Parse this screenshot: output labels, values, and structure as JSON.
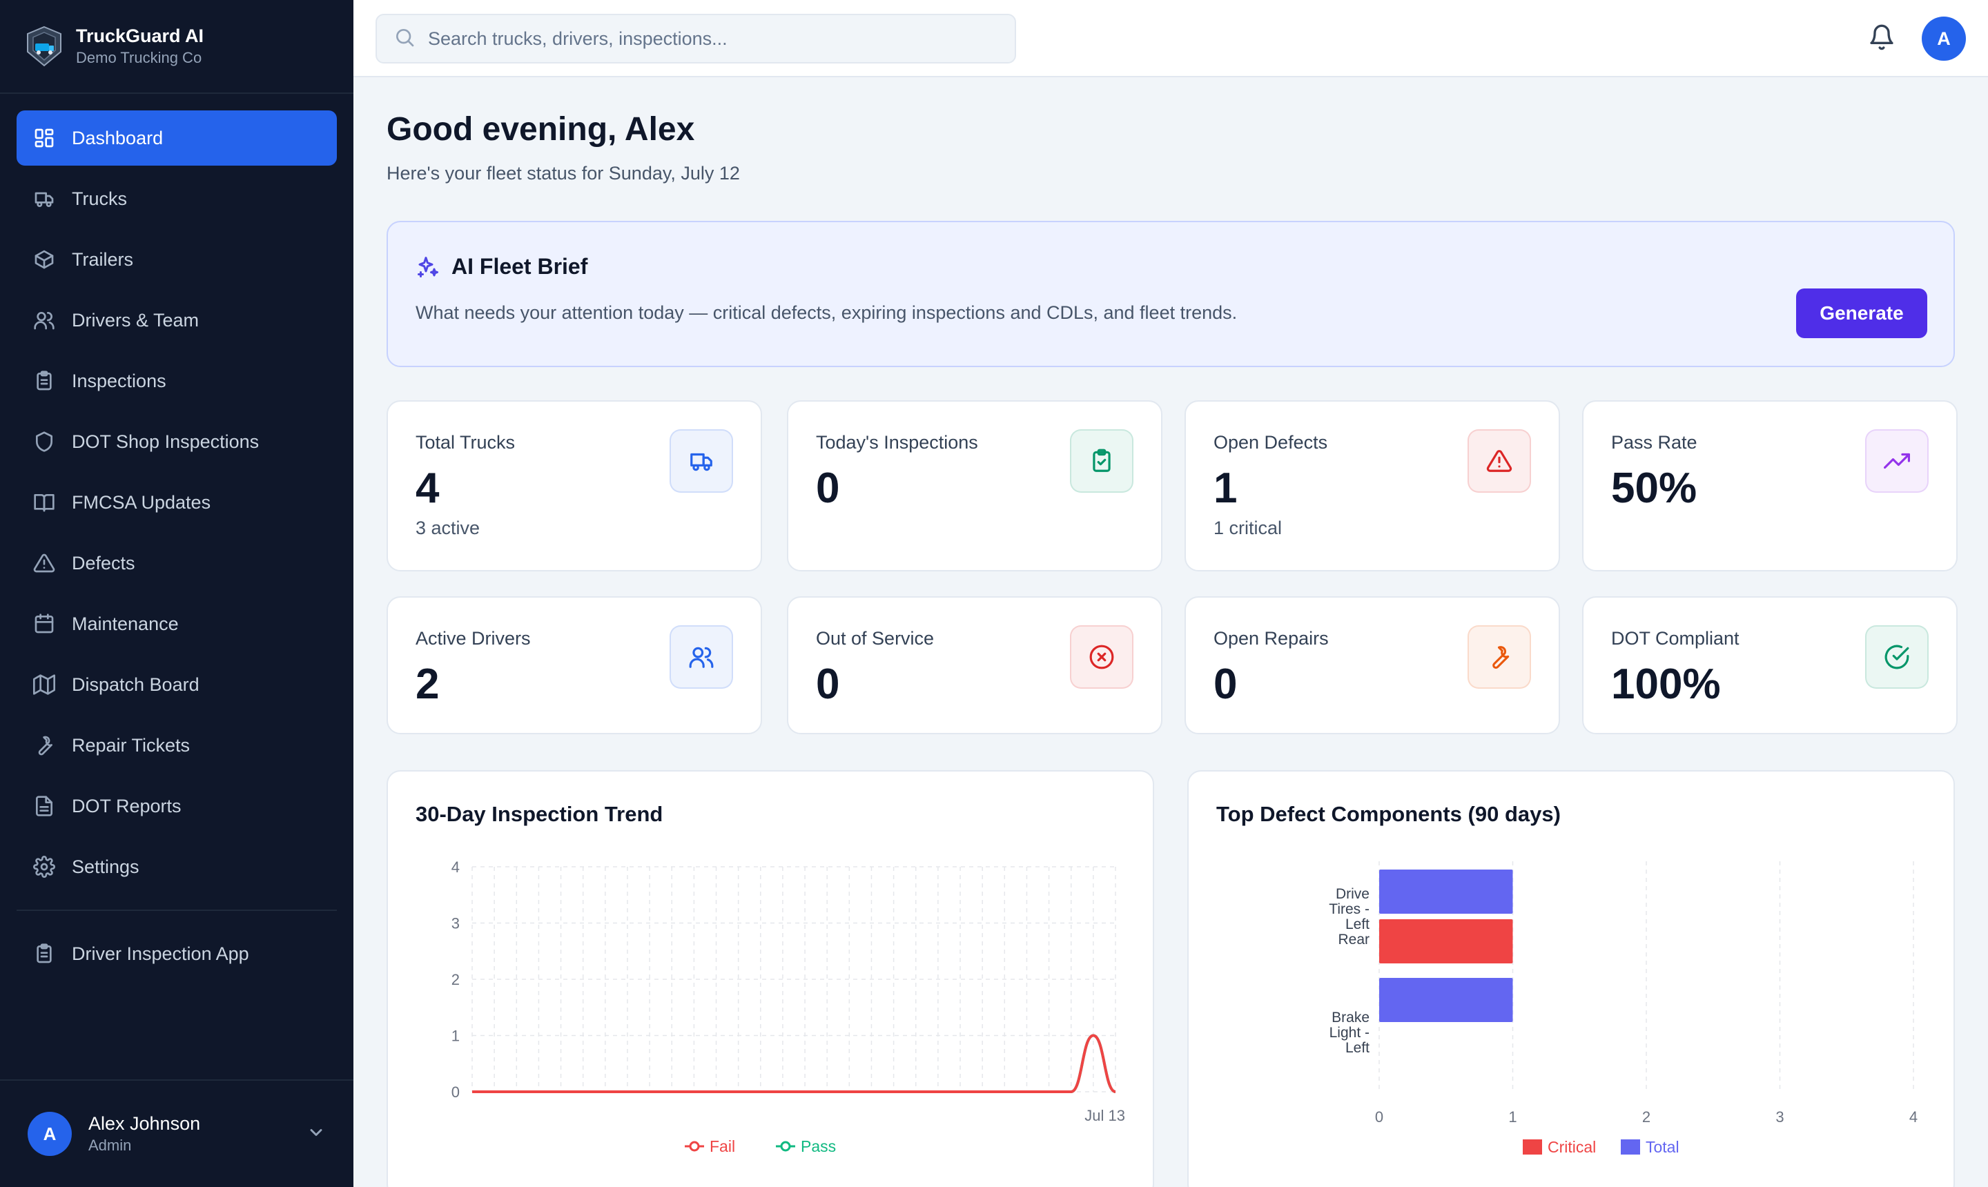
{
  "brand": {
    "name": "TruckGuard AI",
    "company": "Demo Trucking Co"
  },
  "nav": [
    {
      "label": "Dashboard",
      "icon": "dashboard-icon",
      "active": true
    },
    {
      "label": "Trucks",
      "icon": "truck-icon"
    },
    {
      "label": "Trailers",
      "icon": "box-icon"
    },
    {
      "label": "Drivers & Team",
      "icon": "users-icon"
    },
    {
      "label": "Inspections",
      "icon": "clipboard-icon"
    },
    {
      "label": "DOT Shop Inspections",
      "icon": "shield-icon"
    },
    {
      "label": "FMCSA Updates",
      "icon": "book-icon"
    },
    {
      "label": "Defects",
      "icon": "alert-triangle-icon"
    },
    {
      "label": "Maintenance",
      "icon": "calendar-icon"
    },
    {
      "label": "Dispatch Board",
      "icon": "map-icon"
    },
    {
      "label": "Repair Tickets",
      "icon": "wrench-icon"
    },
    {
      "label": "DOT Reports",
      "icon": "file-icon"
    },
    {
      "label": "Settings",
      "icon": "gear-icon"
    }
  ],
  "nav_extra": {
    "label": "Driver Inspection App",
    "icon": "clipboard-icon"
  },
  "user": {
    "initial": "A",
    "name": "Alex Johnson",
    "role": "Admin"
  },
  "search": {
    "placeholder": "Search trucks, drivers, inspections..."
  },
  "topbar": {
    "avatar_initial": "A"
  },
  "greeting": {
    "title": "Good evening, Alex",
    "subtitle": "Here's your fleet status for Sunday, July 12"
  },
  "brief": {
    "title": "AI Fleet Brief",
    "text": "What needs your attention today — critical defects, expiring inspections and CDLs, and fleet trends.",
    "button": "Generate"
  },
  "stats": [
    {
      "label": "Total Trucks",
      "value": "4",
      "sub": "3 active",
      "icon": "truck-icon",
      "color": "#2563eb"
    },
    {
      "label": "Today's Inspections",
      "value": "0",
      "sub": "",
      "icon": "clipboard-check-icon",
      "color": "#059669"
    },
    {
      "label": "Open Defects",
      "value": "1",
      "sub": "1 critical",
      "icon": "alert-triangle-icon",
      "color": "#dc2626"
    },
    {
      "label": "Pass Rate",
      "value": "50%",
      "sub": "",
      "icon": "trending-up-icon",
      "color": "#9333ea"
    },
    {
      "label": "Active Drivers",
      "value": "2",
      "sub": "",
      "icon": "users-icon",
      "color": "#2563eb"
    },
    {
      "label": "Out of Service",
      "value": "0",
      "sub": "",
      "icon": "x-circle-icon",
      "color": "#dc2626"
    },
    {
      "label": "Open Repairs",
      "value": "0",
      "sub": "",
      "icon": "wrench-icon",
      "color": "#ea580c"
    },
    {
      "label": "DOT Compliant",
      "value": "100%",
      "sub": "",
      "icon": "check-circle-icon",
      "color": "#059669"
    }
  ],
  "chart_data": [
    {
      "type": "line",
      "title": "30-Day Inspection Trend",
      "x_tick_labels": [
        "Jul 13"
      ],
      "ylim": [
        0,
        4
      ],
      "y_ticks": [
        0,
        1,
        2,
        3,
        4
      ],
      "grid": true,
      "legend_position": "bottom",
      "series": [
        {
          "name": "Fail",
          "color": "#ef4444",
          "values": [
            0,
            0,
            0,
            0,
            0,
            0,
            0,
            0,
            0,
            0,
            0,
            0,
            0,
            0,
            0,
            0,
            0,
            0,
            0,
            0,
            0,
            0,
            0,
            0,
            0,
            0,
            0,
            0,
            1,
            0
          ]
        },
        {
          "name": "Pass",
          "color": "#10b981",
          "values": [
            0,
            0,
            0,
            0,
            0,
            0,
            0,
            0,
            0,
            0,
            0,
            0,
            0,
            0,
            0,
            0,
            0,
            0,
            0,
            0,
            0,
            0,
            0,
            0,
            0,
            0,
            0,
            0,
            1,
            0
          ]
        }
      ]
    },
    {
      "type": "bar",
      "orientation": "horizontal",
      "title": "Top Defect Components (90 days)",
      "categories": [
        "Drive Tires - Left Rear",
        "Brake Light - Left"
      ],
      "xlim": [
        0,
        4
      ],
      "x_ticks": [
        0,
        1,
        2,
        3,
        4
      ],
      "grid": true,
      "legend_position": "bottom",
      "series": [
        {
          "name": "Critical",
          "color": "#ef4444",
          "values": [
            1,
            0
          ]
        },
        {
          "name": "Total",
          "color": "#6366f1",
          "values": [
            1,
            1
          ]
        }
      ]
    }
  ]
}
